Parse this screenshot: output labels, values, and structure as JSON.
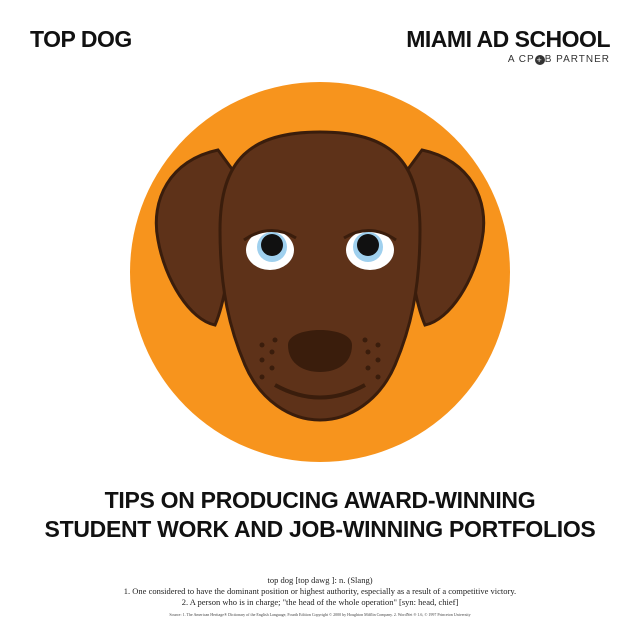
{
  "header": {
    "title": "TOP DOG",
    "brand": "MIAMI AD SCHOOL",
    "partner_prefix": "A CP",
    "partner_suffix": "B PARTNER"
  },
  "headline": {
    "line1": "TIPS ON PRODUCING AWARD-WINNING",
    "line2": "STUDENT WORK AND JOB-WINNING PORTFOLIOS"
  },
  "definition": {
    "term": "top dog [top dawg ]: n. (Slang)",
    "sense1": "1. One considered to have the dominant position or highest authority, especially as a result of a competitive victory.",
    "sense2": "2. A person who is in charge; \"the head of the whole operation\" [syn: head, chief]",
    "source": "Source: 1. The American Heritage® Dictionary of the English Language, Fourth Edition Copyright © 2000 by Houghton Mifflin Company. 2. WordNet ® 1.6, © 1997 Princeton University"
  },
  "colors": {
    "circle": "#f7941d",
    "dog": "#5e3219",
    "dark": "#3a1d0c",
    "eye_ring": "#9fd0ee"
  }
}
